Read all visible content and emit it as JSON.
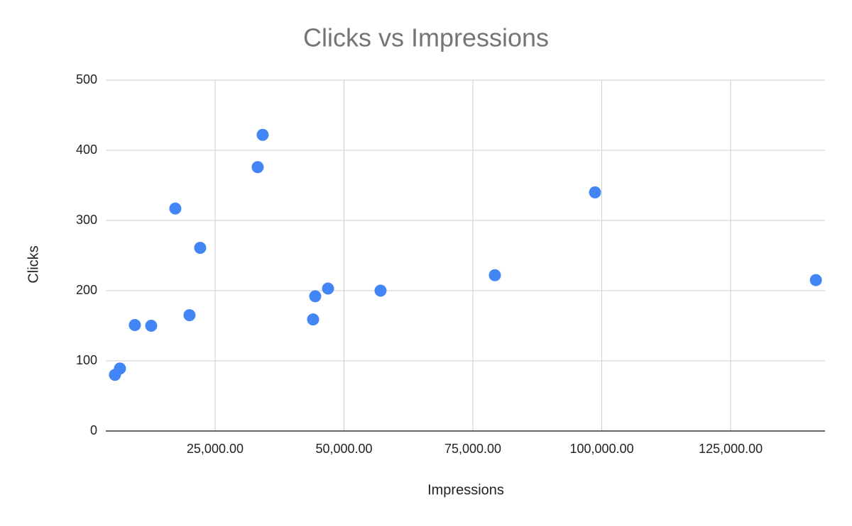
{
  "chart_data": {
    "type": "scatter",
    "title": "Clicks vs Impressions",
    "x_label": "Impressions",
    "y_label": "Clicks",
    "series": [
      {
        "name": "Clicks",
        "color": "#4285f4",
        "x": [
          5578,
          6543,
          9435,
          12603,
          17286,
          20041,
          22107,
          33264,
          34228,
          44007,
          44420,
          46900,
          57092,
          79268,
          98690,
          141527
        ],
        "values": [
          80,
          89,
          151,
          150,
          317,
          165,
          261,
          376,
          422,
          159,
          192,
          203,
          200,
          222,
          340,
          215
        ]
      }
    ],
    "xlim": [
      3800,
      143300
    ],
    "xticks": [
      {
        "value": 25000,
        "label": "25,000.00"
      },
      {
        "value": 50000,
        "label": "50,000.00"
      },
      {
        "value": 75000,
        "label": "75,000.00"
      },
      {
        "value": 100000,
        "label": "100,000.00"
      },
      {
        "value": 125000,
        "label": "125,000.00"
      }
    ],
    "ylim": [
      0,
      500
    ],
    "yticks": [
      0,
      100,
      200,
      300,
      400,
      500
    ],
    "grid": true
  }
}
